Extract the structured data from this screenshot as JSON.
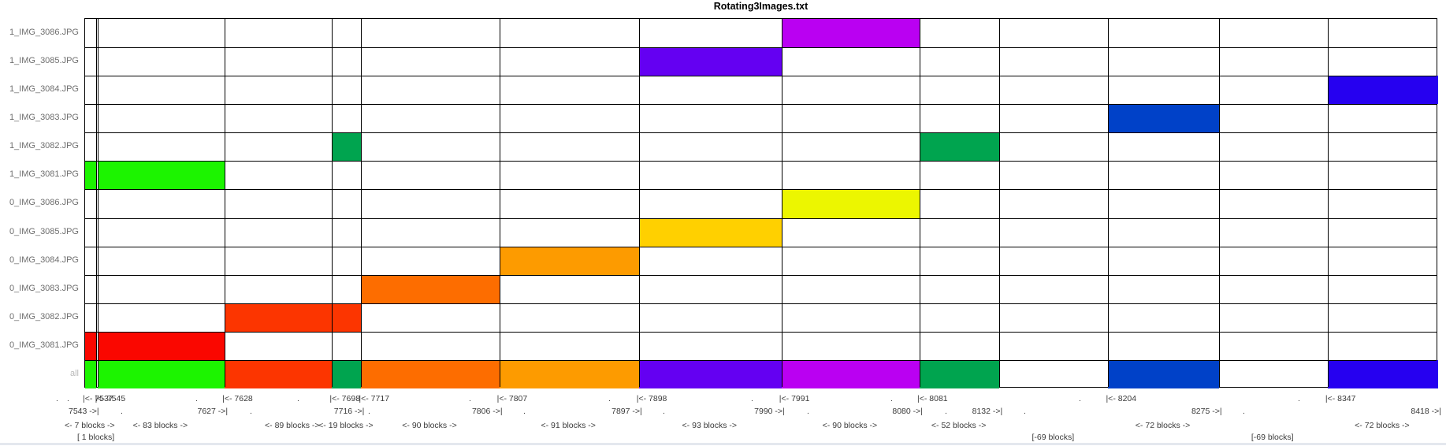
{
  "title": "Rotating3Images.txt",
  "palette": {
    "green": "#1cf400",
    "red": "#fa0700",
    "redorange": "#fc3500",
    "orange": "#fd6d00",
    "amber": "#fd9b00",
    "gold": "#ffd000",
    "yellow": "#ecf600",
    "seagreen": "#00a44f",
    "violet": "#6400f2",
    "magenta": "#ba00f2",
    "darkblue": "#0041c8",
    "blue": "#2600f0"
  },
  "chart_data": {
    "type": "heatmap",
    "subtype": "disk-block-allocation-map",
    "title": "Rotating3Images.txt",
    "x_axis": {
      "unit": "blocks",
      "min_block": 7537,
      "max_block": 8418,
      "grid": true
    },
    "rows": [
      {
        "label": "1_IMG_3086.JPG",
        "muted": false,
        "segments": [
          {
            "start": 7991,
            "end": 8080,
            "color": "magenta"
          }
        ]
      },
      {
        "label": "1_IMG_3085.JPG",
        "muted": false,
        "segments": [
          {
            "start": 7898,
            "end": 7990,
            "color": "violet"
          }
        ]
      },
      {
        "label": "1_IMG_3084.JPG",
        "muted": false,
        "segments": [
          {
            "start": 8347,
            "end": 8418,
            "color": "blue"
          }
        ]
      },
      {
        "label": "1_IMG_3083.JPG",
        "muted": false,
        "segments": [
          {
            "start": 8204,
            "end": 8275,
            "color": "darkblue"
          }
        ]
      },
      {
        "label": "1_IMG_3082.JPG",
        "muted": false,
        "segments": [
          {
            "start": 7698,
            "end": 7716,
            "color": "seagreen"
          },
          {
            "start": 8081,
            "end": 8132,
            "color": "seagreen"
          }
        ]
      },
      {
        "label": "1_IMG_3081.JPG",
        "muted": false,
        "segments": [
          {
            "start": 7537,
            "end": 7543,
            "color": "green"
          },
          {
            "start": 7545,
            "end": 7627,
            "color": "green"
          }
        ]
      },
      {
        "label": "0_IMG_3086.JPG",
        "muted": false,
        "segments": [
          {
            "start": 7991,
            "end": 8080,
            "color": "yellow"
          }
        ]
      },
      {
        "label": "0_IMG_3085.JPG",
        "muted": false,
        "segments": [
          {
            "start": 7898,
            "end": 7990,
            "color": "gold"
          }
        ]
      },
      {
        "label": "0_IMG_3084.JPG",
        "muted": false,
        "segments": [
          {
            "start": 7807,
            "end": 7897,
            "color": "amber"
          }
        ]
      },
      {
        "label": "0_IMG_3083.JPG",
        "muted": false,
        "segments": [
          {
            "start": 7717,
            "end": 7806,
            "color": "orange"
          }
        ]
      },
      {
        "label": "0_IMG_3082.JPG",
        "muted": false,
        "segments": [
          {
            "start": 7628,
            "end": 7697,
            "color": "redorange"
          },
          {
            "start": 7698,
            "end": 7716,
            "color": "redorange"
          }
        ]
      },
      {
        "label": "0_IMG_3081.JPG",
        "muted": false,
        "segments": [
          {
            "start": 7537,
            "end": 7543,
            "color": "red"
          },
          {
            "start": 7545,
            "end": 7627,
            "color": "red"
          }
        ]
      },
      {
        "label": "all",
        "muted": true,
        "segments": [
          {
            "start": 7537,
            "end": 7543,
            "color": "green"
          },
          {
            "start": 7545,
            "end": 7627,
            "color": "green"
          },
          {
            "start": 7628,
            "end": 7697,
            "color": "redorange"
          },
          {
            "start": 7698,
            "end": 7716,
            "color": "seagreen"
          },
          {
            "start": 7717,
            "end": 7806,
            "color": "orange"
          },
          {
            "start": 7807,
            "end": 7897,
            "color": "amber"
          },
          {
            "start": 7898,
            "end": 7990,
            "color": "violet"
          },
          {
            "start": 7991,
            "end": 8080,
            "color": "magenta"
          },
          {
            "start": 8081,
            "end": 8132,
            "color": "seagreen"
          },
          {
            "start": 8204,
            "end": 8275,
            "color": "darkblue"
          },
          {
            "start": 8347,
            "end": 8418,
            "color": "blue"
          }
        ]
      }
    ],
    "boundaries": [
      7537,
      7544,
      7545,
      7628,
      7698,
      7717,
      7807,
      7898,
      7991,
      8081,
      8133,
      8204,
      8276,
      8347,
      8419
    ],
    "axis_annotations": {
      "start_labels": [
        {
          "text": "|<- 7537",
          "block": 7537
        },
        {
          "text": "|<- 7545",
          "block": 7545
        },
        {
          "text": "|<- 7628",
          "block": 7628
        },
        {
          "text": "|<- 7698",
          "block": 7698
        },
        {
          "text": "|<- 7717",
          "block": 7717
        },
        {
          "text": "|<- 7807",
          "block": 7807
        },
        {
          "text": "|<- 7898",
          "block": 7898
        },
        {
          "text": "|<- 7991",
          "block": 7991
        },
        {
          "text": "|<- 8081",
          "block": 8081
        },
        {
          "text": "|<- 8204",
          "block": 8204
        },
        {
          "text": "|<- 8347",
          "block": 8347
        }
      ],
      "end_labels": [
        {
          "text": "7543 ->|",
          "boundary": 7544
        },
        {
          "text": "7627 ->|",
          "boundary": 7628
        },
        {
          "text": "7716 ->|",
          "boundary": 7717
        },
        {
          "text": "7806 ->|",
          "boundary": 7807
        },
        {
          "text": "7897 ->|",
          "boundary": 7898
        },
        {
          "text": "7990 ->|",
          "boundary": 7991
        },
        {
          "text": "8080 ->|",
          "boundary": 8081
        },
        {
          "text": "8132 ->|",
          "boundary": 8133
        },
        {
          "text": "8275 ->|",
          "boundary": 8276
        },
        {
          "text": "8418 ->|",
          "boundary": 8419
        }
      ],
      "count_labels": [
        {
          "text": "<- 7 blocks ->",
          "from": 7537,
          "to": 7544
        },
        {
          "text": "<- 83 blocks ->",
          "from": 7545,
          "to": 7628
        },
        {
          "text": "<- 89 blocks ->",
          "from": 7628,
          "to": 7717
        },
        {
          "text": "<- 19 blocks ->",
          "from": 7698,
          "to": 7717
        },
        {
          "text": "<- 90 blocks ->",
          "from": 7717,
          "to": 7807
        },
        {
          "text": "<- 91 blocks ->",
          "from": 7807,
          "to": 7898
        },
        {
          "text": "<- 93 blocks ->",
          "from": 7898,
          "to": 7991
        },
        {
          "text": "<- 90 blocks ->",
          "from": 7991,
          "to": 8081
        },
        {
          "text": "<- 52 blocks ->",
          "from": 8081,
          "to": 8133
        },
        {
          "text": "<- 72 blocks ->",
          "from": 8204,
          "to": 8276
        },
        {
          "text": "<- 72 blocks ->",
          "from": 8347,
          "to": 8419
        }
      ],
      "gap_labels": [
        {
          "text": "[ 1 blocks]",
          "from": 7544,
          "to": 7545
        },
        {
          "text": "[-69 blocks]",
          "from": 8133,
          "to": 8204
        },
        {
          "text": "[-69 blocks]",
          "from": 8276,
          "to": 8347
        }
      ],
      "tick_dots_row1_x": [
        72,
        86,
        249,
        378,
        596,
        773,
        954,
        1131,
        1370,
        1648
      ],
      "tick_dots_row2_x": [
        154,
        318,
        468,
        665,
        842,
        1025,
        1200,
        1300,
        1578
      ]
    }
  }
}
